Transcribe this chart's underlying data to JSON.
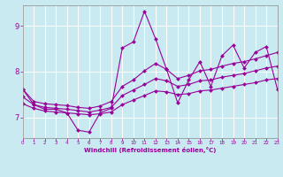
{
  "xlabel": "Windchill (Refroidissement éolien,°C)",
  "bg_color": "#c8eaf0",
  "line_color": "#990099",
  "grid_color": "#ffffff",
  "xlim": [
    0,
    23
  ],
  "ylim": [
    6.55,
    9.45
  ],
  "yticks": [
    7,
    8,
    9
  ],
  "xticks": [
    0,
    1,
    2,
    3,
    4,
    5,
    6,
    7,
    8,
    9,
    10,
    11,
    12,
    13,
    14,
    15,
    16,
    17,
    18,
    19,
    20,
    21,
    22,
    23
  ],
  "line_main": [
    7.62,
    7.28,
    7.18,
    7.18,
    7.1,
    6.72,
    6.68,
    7.1,
    7.2,
    8.52,
    8.65,
    9.32,
    8.72,
    8.05,
    7.32,
    7.82,
    8.22,
    7.68,
    8.35,
    8.58,
    8.08,
    8.42,
    8.55,
    7.62
  ],
  "line_upper": [
    7.62,
    7.35,
    7.3,
    7.28,
    7.26,
    7.22,
    7.2,
    7.25,
    7.35,
    7.68,
    7.82,
    8.02,
    8.18,
    8.05,
    7.85,
    7.92,
    8.02,
    8.05,
    8.12,
    8.18,
    8.22,
    8.28,
    8.35,
    8.42
  ],
  "line_mid": [
    7.45,
    7.28,
    7.22,
    7.2,
    7.18,
    7.15,
    7.12,
    7.16,
    7.22,
    7.48,
    7.6,
    7.72,
    7.85,
    7.8,
    7.68,
    7.72,
    7.8,
    7.82,
    7.88,
    7.92,
    7.96,
    8.02,
    8.08,
    8.12
  ],
  "line_lower": [
    7.3,
    7.2,
    7.14,
    7.12,
    7.1,
    7.08,
    7.06,
    7.08,
    7.12,
    7.28,
    7.38,
    7.48,
    7.58,
    7.56,
    7.5,
    7.52,
    7.58,
    7.6,
    7.64,
    7.68,
    7.72,
    7.76,
    7.82,
    7.85
  ]
}
